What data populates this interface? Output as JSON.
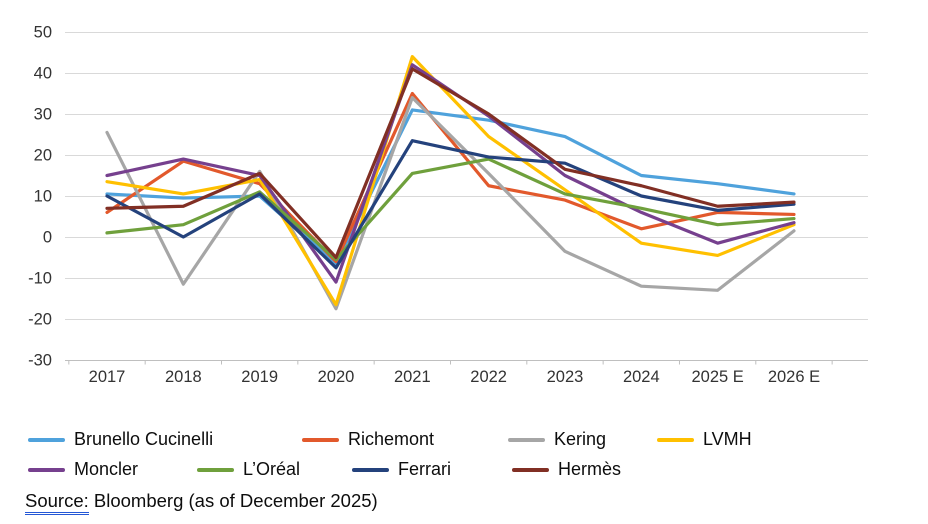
{
  "source": {
    "label": "Source:",
    "text": " Bloomberg (as of December 2025)"
  },
  "chart_data": {
    "type": "line",
    "title": "",
    "xlabel": "",
    "ylabel": "",
    "ylim": [
      -30,
      50
    ],
    "ytick_step": 10,
    "grid": true,
    "legend_position": "bottom",
    "categories": [
      "2017",
      "2018",
      "2019",
      "2020",
      "2021",
      "2022",
      "2023",
      "2024",
      "2025 E",
      "2026 E"
    ],
    "series": [
      {
        "name": "Brunello Cucinelli",
        "color": "#4FA2DC",
        "values": [
          10.5,
          9.5,
          10,
          -6.5,
          31,
          28.5,
          24.5,
          15,
          13,
          10.5
        ]
      },
      {
        "name": "Richemont",
        "color": "#E2592C",
        "values": [
          6,
          18.5,
          13,
          -6,
          35,
          12.5,
          9,
          2,
          6,
          5.5
        ]
      },
      {
        "name": "Kering",
        "color": "#A6A6A6",
        "values": [
          25.5,
          -11.5,
          16,
          -17.5,
          34,
          15.5,
          -3.5,
          -12,
          -13,
          1.5
        ]
      },
      {
        "name": "LVMH",
        "color": "#FFC000",
        "values": [
          13.5,
          10.5,
          14,
          -16.5,
          44,
          24.5,
          11.5,
          -1.5,
          -4.5,
          3
        ]
      },
      {
        "name": "Moncler",
        "color": "#76408E",
        "values": [
          15,
          19,
          15,
          -11,
          42,
          29.5,
          15,
          6,
          -1.5,
          3.5
        ]
      },
      {
        "name": "L’Oréal",
        "color": "#6FA03C",
        "values": [
          1,
          3,
          11,
          -5.5,
          15.5,
          19,
          10.5,
          7,
          3,
          4.5
        ]
      },
      {
        "name": "Ferrari",
        "color": "#24427C",
        "values": [
          10,
          0,
          10.5,
          -7.5,
          23.5,
          19.5,
          18,
          10,
          6.5,
          8
        ]
      },
      {
        "name": "Hermès",
        "color": "#812F24",
        "values": [
          7,
          7.5,
          15.5,
          -5,
          41,
          30,
          16.5,
          12.5,
          7.5,
          8.5
        ]
      }
    ]
  }
}
